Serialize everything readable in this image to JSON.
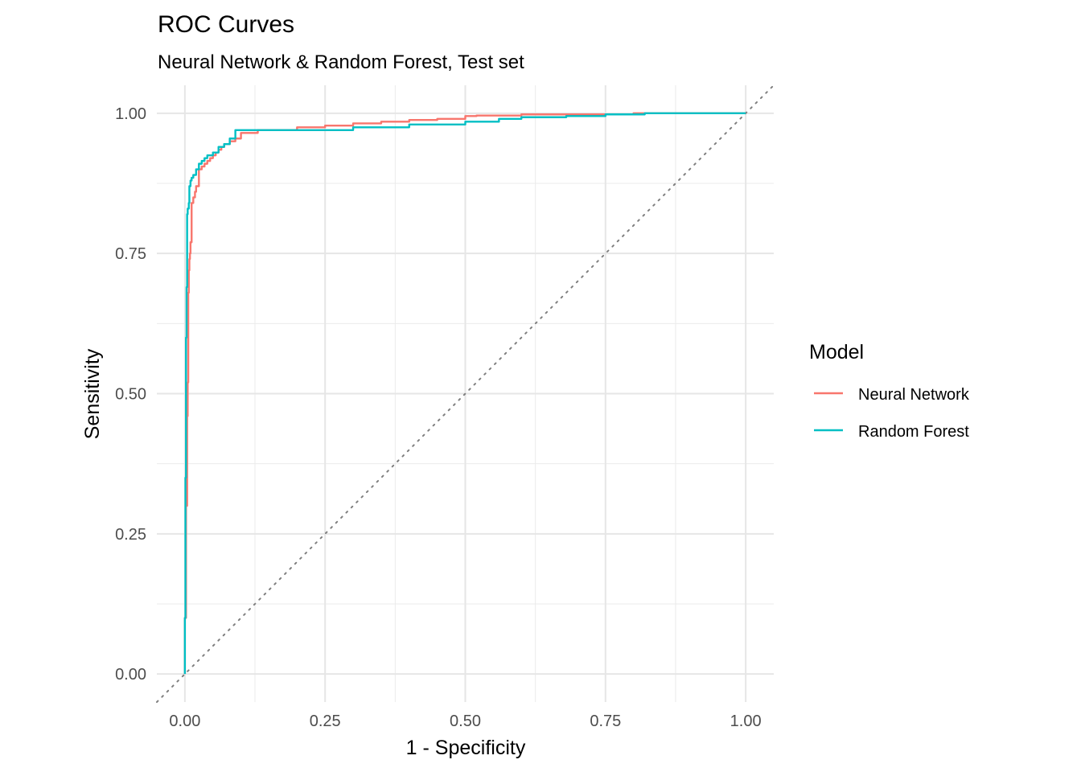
{
  "chart_data": {
    "type": "line",
    "title": "ROC Curves",
    "subtitle": "Neural Network & Random Forest, Test set",
    "xlabel": "1 - Specificity",
    "ylabel": "Sensitivity",
    "xlim": [
      -0.05,
      1.05
    ],
    "ylim": [
      -0.05,
      1.05
    ],
    "x_ticks": [
      0,
      0.25,
      0.5,
      0.75,
      1
    ],
    "x_tick_labels": [
      "0.00",
      "0.25",
      "0.50",
      "0.75",
      "1.00"
    ],
    "y_ticks": [
      0,
      0.25,
      0.5,
      0.75,
      1
    ],
    "y_tick_labels": [
      "0.00",
      "0.25",
      "0.50",
      "0.75",
      "1.00"
    ],
    "grid": true,
    "reference_line": {
      "x": [
        0,
        1
      ],
      "y": [
        0,
        1
      ],
      "style": "dotted",
      "color": "#808080"
    },
    "legend": {
      "title": "Model",
      "position": "right",
      "entries": [
        "Neural Network",
        "Random Forest"
      ]
    },
    "series": [
      {
        "name": "Neural Network",
        "color": "#F8766D",
        "x": [
          0,
          0.002,
          0.004,
          0.005,
          0.006,
          0.007,
          0.008,
          0.009,
          0.01,
          0.012,
          0.015,
          0.018,
          0.02,
          0.025,
          0.03,
          0.035,
          0.04,
          0.045,
          0.05,
          0.055,
          0.06,
          0.065,
          0.07,
          0.08,
          0.09,
          0.1,
          0.13,
          0.2,
          0.25,
          0.3,
          0.35,
          0.4,
          0.45,
          0.5,
          0.52,
          0.6,
          0.68,
          0.8,
          0.88,
          0.93,
          1
        ],
        "y": [
          0,
          0.1,
          0.3,
          0.46,
          0.52,
          0.68,
          0.72,
          0.74,
          0.75,
          0.77,
          0.84,
          0.85,
          0.86,
          0.87,
          0.9,
          0.905,
          0.91,
          0.915,
          0.92,
          0.925,
          0.93,
          0.935,
          0.94,
          0.945,
          0.95,
          0.955,
          0.965,
          0.97,
          0.975,
          0.978,
          0.982,
          0.985,
          0.988,
          0.99,
          0.995,
          0.996,
          0.998,
          0.998,
          1,
          1,
          1
        ]
      },
      {
        "name": "Random Forest",
        "color": "#00BFC4",
        "x": [
          0,
          0.001,
          0.002,
          0.003,
          0.004,
          0.005,
          0.007,
          0.008,
          0.01,
          0.012,
          0.015,
          0.02,
          0.025,
          0.03,
          0.035,
          0.04,
          0.05,
          0.06,
          0.07,
          0.08,
          0.09,
          0.11,
          0.15,
          0.2,
          0.3,
          0.4,
          0.5,
          0.56,
          0.6,
          0.68,
          0.75,
          0.82,
          0.9,
          0.95,
          1
        ],
        "y": [
          0,
          0.1,
          0.35,
          0.6,
          0.69,
          0.82,
          0.83,
          0.84,
          0.87,
          0.88,
          0.885,
          0.89,
          0.9,
          0.91,
          0.915,
          0.92,
          0.925,
          0.93,
          0.94,
          0.945,
          0.955,
          0.97,
          0.97,
          0.97,
          0.97,
          0.975,
          0.98,
          0.985,
          0.99,
          0.993,
          0.995,
          0.998,
          1,
          1,
          1
        ]
      }
    ]
  }
}
